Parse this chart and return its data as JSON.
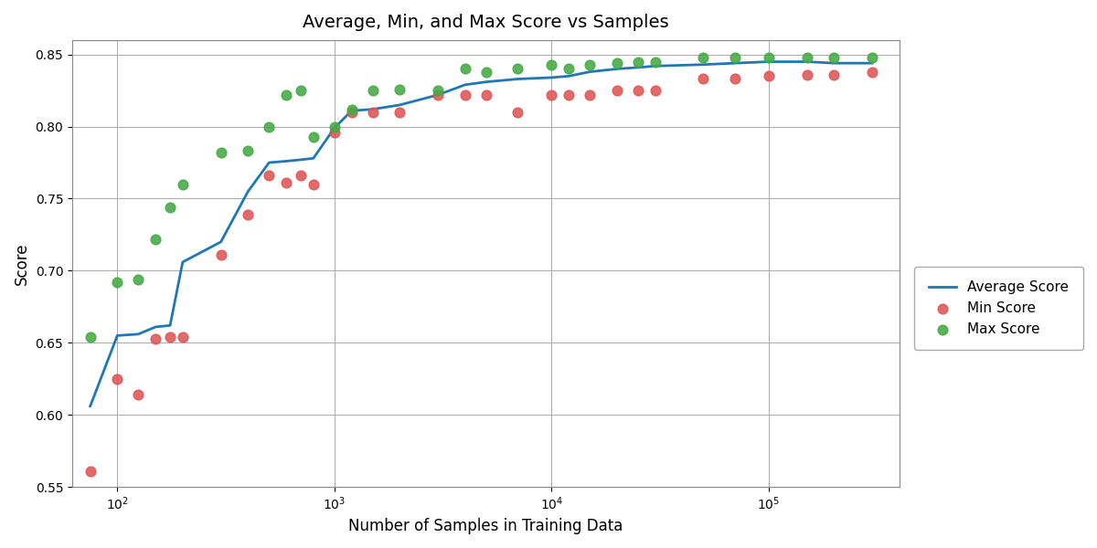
{
  "title": "Average, Min, and Max Score vs Samples",
  "xlabel": "Number of Samples in Training Data",
  "ylabel": "Score",
  "ylim": [
    0.55,
    0.86
  ],
  "samples": [
    75,
    100,
    125,
    150,
    175,
    200,
    300,
    400,
    500,
    600,
    700,
    800,
    1000,
    1200,
    1500,
    2000,
    3000,
    4000,
    5000,
    7000,
    10000,
    12000,
    15000,
    20000,
    25000,
    30000,
    50000,
    70000,
    100000,
    150000,
    200000,
    300000
  ],
  "avg_score": [
    0.606,
    0.655,
    0.656,
    0.661,
    0.662,
    0.706,
    0.72,
    0.755,
    0.775,
    0.776,
    0.777,
    0.778,
    0.799,
    0.811,
    0.812,
    0.815,
    0.822,
    0.829,
    0.831,
    0.833,
    0.834,
    0.835,
    0.838,
    0.84,
    0.841,
    0.842,
    0.843,
    0.844,
    0.845,
    0.845,
    0.844,
    0.844
  ],
  "min_score": [
    0.561,
    0.625,
    0.614,
    0.653,
    0.654,
    0.654,
    0.711,
    0.739,
    0.766,
    0.761,
    0.766,
    0.76,
    0.796,
    0.81,
    0.81,
    0.81,
    0.822,
    0.822,
    0.822,
    0.81,
    0.822,
    0.822,
    0.822,
    0.825,
    0.825,
    0.825,
    0.833,
    0.833,
    0.835,
    0.836,
    0.836,
    0.838
  ],
  "max_score": [
    0.654,
    0.692,
    0.694,
    0.722,
    0.744,
    0.76,
    0.782,
    0.783,
    0.8,
    0.822,
    0.825,
    0.793,
    0.8,
    0.812,
    0.825,
    0.826,
    0.825,
    0.84,
    0.838,
    0.84,
    0.843,
    0.84,
    0.843,
    0.844,
    0.845,
    0.845,
    0.848,
    0.848,
    0.848,
    0.848,
    0.848,
    0.848
  ],
  "line_color": "#1f77b4",
  "min_color": "#e05555",
  "max_color": "#44aa44",
  "background_color": "#ffffff",
  "grid_color": "#aaaaaa"
}
